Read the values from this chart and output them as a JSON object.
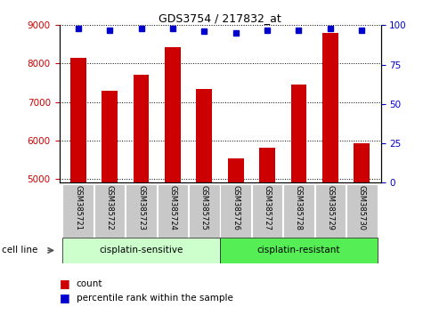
{
  "title": "GDS3754 / 217832_at",
  "samples": [
    "GSM385721",
    "GSM385722",
    "GSM385723",
    "GSM385724",
    "GSM385725",
    "GSM385726",
    "GSM385727",
    "GSM385728",
    "GSM385729",
    "GSM385730"
  ],
  "counts": [
    8150,
    7300,
    7720,
    8420,
    7350,
    5530,
    5820,
    7450,
    8800,
    5930
  ],
  "percentile_ranks": [
    98,
    97,
    98,
    98,
    96,
    95,
    97,
    97,
    98,
    97
  ],
  "ylim_left": [
    4900,
    9000
  ],
  "ylim_right": [
    0,
    100
  ],
  "yticks_left": [
    5000,
    6000,
    7000,
    8000,
    9000
  ],
  "yticks_right": [
    0,
    25,
    50,
    75,
    100
  ],
  "bar_color": "#cc0000",
  "dot_color": "#0000cc",
  "group1_label": "cisplatin-sensitive",
  "group2_label": "cisplatin-resistant",
  "group1_indices": [
    0,
    1,
    2,
    3,
    4
  ],
  "group2_indices": [
    5,
    6,
    7,
    8,
    9
  ],
  "group1_bg": "#ccffcc",
  "group2_bg": "#55ee55",
  "cell_line_label": "cell line",
  "legend_count_label": "count",
  "legend_pct_label": "percentile rank within the sample",
  "left_tick_color": "#cc0000",
  "right_tick_color": "#0000cc",
  "tick_bg": "#c8c8c8",
  "bar_bottom": 4900
}
